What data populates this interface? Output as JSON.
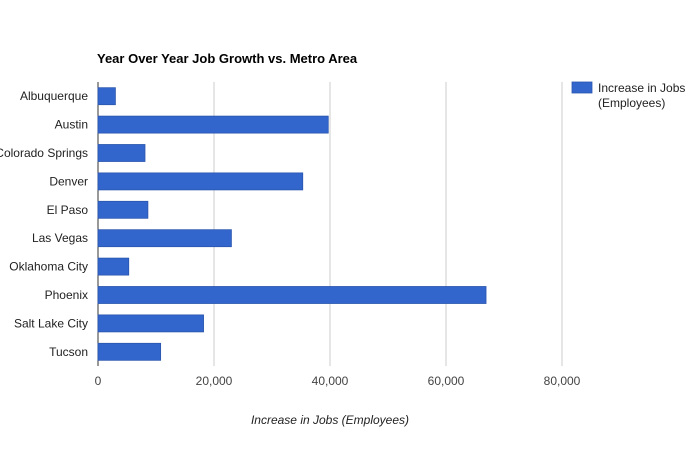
{
  "chart_data": {
    "type": "bar",
    "orientation": "horizontal",
    "title": "Year Over Year Job Growth vs. Metro Area",
    "xlabel": "Increase in Jobs (Employees)",
    "ylabel": "",
    "categories": [
      "Albuquerque",
      "Austin",
      "Colorado Springs",
      "Denver",
      "El Paso",
      "Las Vegas",
      "Oklahoma City",
      "Phoenix",
      "Salt Lake City",
      "Tucson"
    ],
    "series": [
      {
        "name": "Increase in Jobs (Employees)",
        "legend_lines": [
          "Increase in Jobs",
          "(Employees)"
        ],
        "color": "#3366cc",
        "values": [
          3000,
          39700,
          8100,
          35300,
          8600,
          23000,
          5300,
          66900,
          18200,
          10800
        ]
      }
    ],
    "xlim": [
      0,
      80000
    ],
    "xticks": [
      0,
      20000,
      40000,
      60000,
      80000
    ],
    "xtick_labels": [
      "0",
      "20,000",
      "40,000",
      "60,000",
      "80,000"
    ],
    "grid": "vertical",
    "legend_position": "right"
  }
}
